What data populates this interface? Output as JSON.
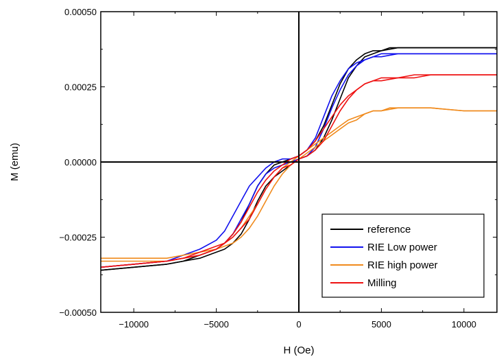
{
  "chart_data": {
    "type": "line",
    "xlabel": "H (Oe)",
    "ylabel": "M (emu)",
    "xlim": [
      -12000,
      12000
    ],
    "ylim": [
      -0.0005,
      0.0005
    ],
    "x_ticks": [
      -10000,
      -5000,
      0,
      5000,
      10000
    ],
    "x_tick_labels": [
      "−10000",
      "−5000",
      "0",
      "5000",
      "10000"
    ],
    "y_ticks": [
      -0.0005,
      -0.00025,
      0,
      0.00025,
      0.0005
    ],
    "y_tick_labels": [
      "−0.00050",
      "−0.00025",
      "0.00000",
      "0.00025",
      "0.00050"
    ],
    "grid": false,
    "legend_position": "bottom-right",
    "series": [
      {
        "name": "reference",
        "color": "#000000",
        "branches": [
          {
            "x": [
              -12000,
              -10000,
              -8000,
              -7000,
              -6000,
              -5000,
              -4500,
              -4000,
              -3500,
              -3000,
              -2500,
              -2000,
              -1500,
              -1000,
              -500,
              0,
              500,
              1000,
              1500,
              2000,
              2500,
              3000,
              3500,
              4000,
              4500,
              5000,
              5500,
              6000,
              7000,
              8000,
              10000,
              12000
            ],
            "y": [
              -0.00036,
              -0.00035,
              -0.00034,
              -0.00033,
              -0.00031,
              -0.00029,
              -0.00027,
              -0.00024,
              -0.0002,
              -0.00014,
              -8e-05,
              -4e-05,
              -1e-05,
              0.0,
              1e-05,
              2e-05,
              4e-05,
              7e-05,
              0.00012,
              0.00019,
              0.00026,
              0.00031,
              0.00034,
              0.00036,
              0.00037,
              0.00037,
              0.00038,
              0.00038,
              0.00038,
              0.00038,
              0.00038,
              0.00038
            ]
          },
          {
            "x": [
              12000,
              10000,
              8000,
              7000,
              6000,
              5000,
              4500,
              4000,
              3500,
              3000,
              2500,
              2000,
              1500,
              1000,
              500,
              0,
              -500,
              -1000,
              -1500,
              -2000,
              -2500,
              -3000,
              -3500,
              -4000,
              -4500,
              -5000,
              -6000,
              -7000,
              -8000,
              -10000,
              -12000
            ],
            "y": [
              0.00038,
              0.00038,
              0.00038,
              0.00038,
              0.00038,
              0.00037,
              0.00036,
              0.00035,
              0.00032,
              0.00028,
              0.00021,
              0.00014,
              8e-05,
              4e-05,
              2e-05,
              1e-05,
              -1e-05,
              -3e-05,
              -5e-05,
              -8e-05,
              -0.00013,
              -0.00019,
              -0.00024,
              -0.00027,
              -0.00029,
              -0.0003,
              -0.00032,
              -0.00033,
              -0.00034,
              -0.00035,
              -0.00036
            ]
          }
        ]
      },
      {
        "name": "RIE Low power",
        "color": "#1010ee",
        "branches": [
          {
            "x": [
              -12000,
              -10000,
              -8000,
              -7000,
              -6000,
              -5000,
              -4500,
              -4000,
              -3500,
              -3000,
              -2500,
              -2000,
              -1500,
              -1000,
              -500,
              0,
              500,
              1000,
              1500,
              2000,
              2500,
              3000,
              3500,
              4000,
              4500,
              5000,
              5500,
              6000,
              7000,
              8000,
              10000,
              12000
            ],
            "y": [
              -0.00035,
              -0.00034,
              -0.00033,
              -0.00031,
              -0.00029,
              -0.00026,
              -0.00023,
              -0.00018,
              -0.00013,
              -8e-05,
              -5e-05,
              -2e-05,
              0.0,
              1e-05,
              1e-05,
              2e-05,
              4e-05,
              8e-05,
              0.00015,
              0.00022,
              0.00027,
              0.00031,
              0.00033,
              0.00034,
              0.00035,
              0.00036,
              0.00036,
              0.00036,
              0.00036,
              0.00036,
              0.00036,
              0.00036
            ]
          },
          {
            "x": [
              12000,
              10000,
              8000,
              7000,
              6000,
              5000,
              4500,
              4000,
              3500,
              3000,
              2500,
              2000,
              1500,
              1000,
              500,
              0,
              -500,
              -1000,
              -1500,
              -2000,
              -2500,
              -3000,
              -3500,
              -4000,
              -4500,
              -5000,
              -6000,
              -7000,
              -8000,
              -10000,
              -12000
            ],
            "y": [
              0.00036,
              0.00036,
              0.00036,
              0.00036,
              0.00036,
              0.00035,
              0.00035,
              0.00034,
              0.00032,
              0.00029,
              0.00024,
              0.00018,
              0.00011,
              5e-05,
              2e-05,
              1e-05,
              0.0,
              -1e-05,
              -2e-05,
              -4e-05,
              -8e-05,
              -0.00014,
              -0.00019,
              -0.00024,
              -0.00027,
              -0.00029,
              -0.00031,
              -0.00032,
              -0.00033,
              -0.00034,
              -0.00035
            ]
          }
        ]
      },
      {
        "name": "RIE high power",
        "color": "#f08a1c",
        "branches": [
          {
            "x": [
              -12000,
              -10000,
              -8000,
              -7000,
              -6000,
              -5000,
              -4500,
              -4000,
              -3500,
              -3000,
              -2500,
              -2000,
              -1500,
              -1000,
              -500,
              0,
              500,
              1000,
              1500,
              2000,
              2500,
              3000,
              3500,
              4000,
              4500,
              5000,
              5500,
              6000,
              7000,
              8000,
              10000,
              12000
            ],
            "y": [
              -0.00033,
              -0.00033,
              -0.00033,
              -0.00032,
              -0.00031,
              -0.00029,
              -0.00028,
              -0.00027,
              -0.00025,
              -0.00022,
              -0.00018,
              -0.00013,
              -8e-05,
              -4e-05,
              -1e-05,
              1e-05,
              3e-05,
              5e-05,
              7e-05,
              9e-05,
              0.00011,
              0.00013,
              0.00014,
              0.00016,
              0.00017,
              0.00017,
              0.00018,
              0.00018,
              0.00018,
              0.00018,
              0.00017,
              0.00017
            ]
          },
          {
            "x": [
              12000,
              10000,
              8000,
              7000,
              6000,
              5000,
              4500,
              4000,
              3500,
              3000,
              2500,
              2000,
              1500,
              1000,
              500,
              0,
              -500,
              -1000,
              -1500,
              -2000,
              -2500,
              -3000,
              -3500,
              -4000,
              -4500,
              -5000,
              -6000,
              -7000,
              -8000,
              -10000,
              -12000
            ],
            "y": [
              0.00017,
              0.00017,
              0.00018,
              0.00018,
              0.00018,
              0.00017,
              0.00017,
              0.00016,
              0.00015,
              0.00014,
              0.00012,
              0.0001,
              8e-05,
              6e-05,
              4e-05,
              2e-05,
              0.0,
              -2e-05,
              -5e-05,
              -9e-05,
              -0.00014,
              -0.00018,
              -0.00022,
              -0.00025,
              -0.00027,
              -0.00029,
              -0.0003,
              -0.00031,
              -0.00032,
              -0.00032,
              -0.00032
            ]
          }
        ]
      },
      {
        "name": "Milling",
        "color": "#ee1010",
        "branches": [
          {
            "x": [
              -12000,
              -10000,
              -8000,
              -7000,
              -6000,
              -5000,
              -4500,
              -4000,
              -3500,
              -3000,
              -2500,
              -2000,
              -1500,
              -1000,
              -500,
              0,
              500,
              1000,
              1500,
              2000,
              2500,
              3000,
              3500,
              4000,
              4500,
              5000,
              5500,
              6000,
              7000,
              8000,
              10000,
              12000
            ],
            "y": [
              -0.00035,
              -0.00034,
              -0.00033,
              -0.00032,
              -0.00031,
              -0.00029,
              -0.00027,
              -0.00024,
              -0.0002,
              -0.00015,
              -0.0001,
              -6e-05,
              -3e-05,
              -1e-05,
              1e-05,
              2e-05,
              4e-05,
              7e-05,
              0.00011,
              0.00015,
              0.00019,
              0.00022,
              0.00024,
              0.00026,
              0.00027,
              0.00028,
              0.00028,
              0.00028,
              0.00029,
              0.00029,
              0.00029,
              0.00029
            ]
          },
          {
            "x": [
              12000,
              10000,
              8000,
              7000,
              6000,
              5000,
              4500,
              4000,
              3500,
              3000,
              2500,
              2000,
              1500,
              1000,
              500,
              0,
              -500,
              -1000,
              -1500,
              -2000,
              -2500,
              -3000,
              -3500,
              -4000,
              -4500,
              -5000,
              -6000,
              -7000,
              -8000,
              -10000,
              -12000
            ],
            "y": [
              0.00029,
              0.00029,
              0.00029,
              0.00028,
              0.00028,
              0.00027,
              0.00027,
              0.00026,
              0.00024,
              0.00021,
              0.00017,
              0.00012,
              7e-05,
              4e-05,
              2e-05,
              1e-05,
              -1e-05,
              -2e-05,
              -5e-05,
              -9e-05,
              -0.00014,
              -0.00019,
              -0.00022,
              -0.00025,
              -0.00027,
              -0.00028,
              -0.0003,
              -0.00032,
              -0.00033,
              -0.00034,
              -0.00035
            ]
          }
        ]
      }
    ]
  }
}
